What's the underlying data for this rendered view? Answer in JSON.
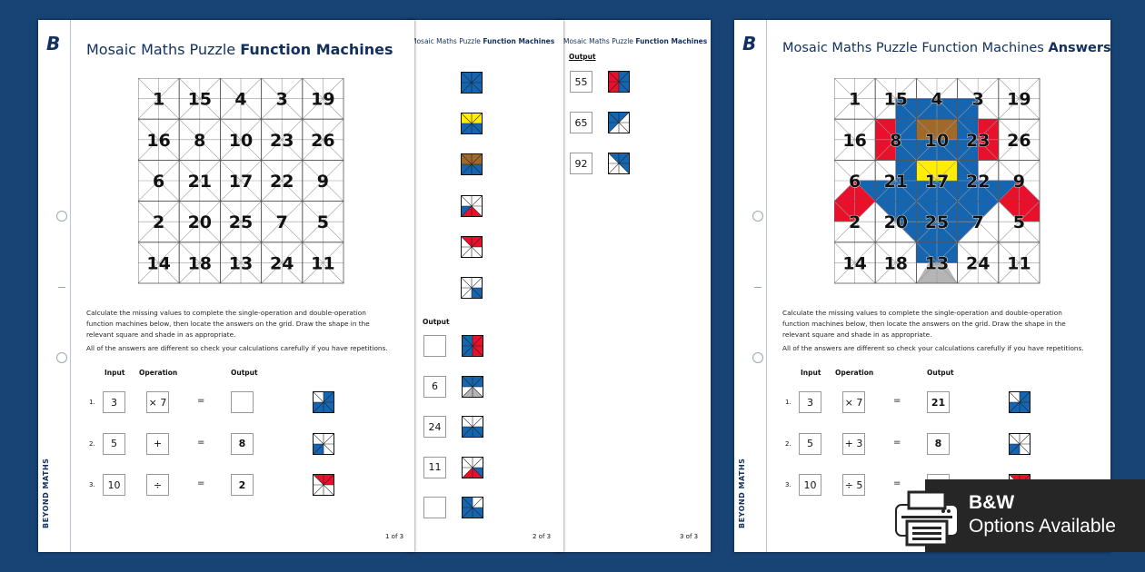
{
  "title_regular": "Mosaic Maths Puzzle",
  "title_bold": "Function Machines",
  "answers_suffix": "Answers",
  "brand": "BEYOND MATHS",
  "instructions": [
    "Calculate the missing values to complete the single-operation and double-operation function machines below, then locate the answers on the grid. Draw the shape in the relevant square and shade in as appropriate.",
    "All of the answers are different so check your calculations carefully if you have repetitions."
  ],
  "headers": {
    "input": "Input",
    "operation": "Operation",
    "output": "Output"
  },
  "grid_numbers": [
    [
      1,
      15,
      4,
      3,
      19
    ],
    [
      16,
      8,
      10,
      23,
      26
    ],
    [
      6,
      21,
      17,
      22,
      9
    ],
    [
      2,
      20,
      25,
      7,
      5
    ],
    [
      14,
      18,
      13,
      24,
      11
    ]
  ],
  "colors": {
    "blue": "#1565b0",
    "red": "#e8102a",
    "yellow": "#ffee00",
    "brown": "#a0692a",
    "gray": "#b5b5b5",
    "background": "#174375",
    "navy": "#12305e"
  },
  "page1": {
    "rows": [
      {
        "num": "1.",
        "input": "3",
        "operation": "× 7",
        "equals": "=",
        "output": "",
        "tile": "blue-l-shape"
      },
      {
        "num": "2.",
        "input": "5",
        "operation": "+",
        "equals": "=",
        "output": "8",
        "tile": "blue-bottom-left-quarter"
      },
      {
        "num": "3.",
        "input": "10",
        "operation": "÷",
        "equals": "=",
        "output": "2",
        "tile": "red-top-wedge"
      }
    ],
    "page_number": "1 of 3"
  },
  "page2": {
    "top_tiles": [
      "blue-full",
      "yellow-top-blue-bottom",
      "brown-top-blue-bottom",
      "blue-red-bottom-wedge",
      "red-top-wedge",
      "blue-bottom-right-quarter"
    ],
    "output_label": "Output",
    "rows": [
      {
        "output": "",
        "tile": "blue-left-red-right"
      },
      {
        "output": "6",
        "tile": "blue-top-gray-triangle"
      },
      {
        "output": "24",
        "tile": "blue-bottom-half"
      },
      {
        "output": "11",
        "tile": "red-triangle-blue-corner"
      },
      {
        "output": "",
        "tile": "blue-missing-top-right"
      }
    ],
    "page_number": "2 of 3"
  },
  "page3": {
    "output_label": "Output",
    "rows": [
      {
        "output": "55",
        "tile": "red-left-blue-right"
      },
      {
        "output": "65",
        "tile": "blue-top-left-triangle"
      },
      {
        "output": "92",
        "tile": "blue-top-right-triangle"
      }
    ],
    "page_number": "3 of 3"
  },
  "answers_page": {
    "rows": [
      {
        "num": "1.",
        "input": "3",
        "operation": "× 7",
        "equals": "=",
        "output": "21",
        "tile": "blue-l-shape"
      },
      {
        "num": "2.",
        "input": "5",
        "operation": "+ 3",
        "equals": "=",
        "output": "8",
        "tile": "blue-bottom-left-quarter"
      },
      {
        "num": "3.",
        "input": "10",
        "operation": "÷ 5",
        "equals": "=",
        "output": "",
        "tile": "red-top-wedge"
      }
    ]
  },
  "badge": {
    "line1": "B&W",
    "line2": "Options Available",
    "icon": "printer-icon"
  }
}
